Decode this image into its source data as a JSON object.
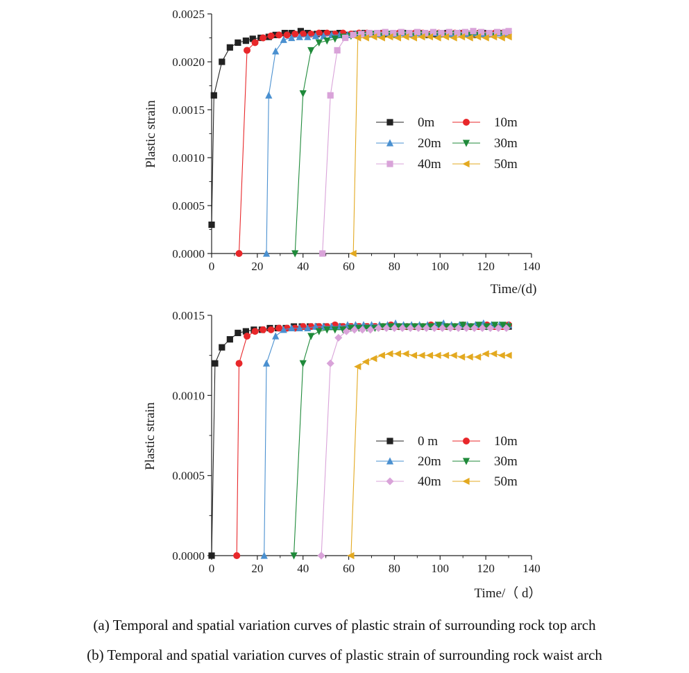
{
  "chart_data": [
    {
      "id": "a",
      "type": "line",
      "xlabel": "Time/(d)",
      "ylabel": "Plastic strain",
      "xlim": [
        0,
        140
      ],
      "ylim": [
        0,
        0.0025
      ],
      "xticks": [
        0,
        20,
        40,
        60,
        80,
        100,
        120,
        140
      ],
      "xtick_labels": [
        "0",
        "20",
        "40",
        "60",
        "80",
        "100",
        "120",
        "140"
      ],
      "yticks": [
        0,
        0.0005,
        0.001,
        0.0015,
        0.002,
        0.0025
      ],
      "ytick_labels": [
        "0.0000",
        "0.0005",
        "0.0010",
        "0.0015",
        "0.0020",
        "0.0025"
      ],
      "legend_placement": "center-right",
      "series": [
        {
          "name": "0m",
          "color": "#222222",
          "marker": "square",
          "x": [
            0,
            1,
            4.5,
            8,
            11.5,
            15,
            18,
            21.5,
            25,
            28,
            32,
            35,
            39,
            42,
            46,
            49,
            53,
            56,
            60,
            63,
            67,
            70,
            74,
            77,
            81,
            84,
            88,
            91,
            95,
            98,
            102,
            105,
            109,
            112,
            116,
            119,
            123,
            126,
            129
          ],
          "y": [
            0.0003,
            0.00165,
            0.002,
            0.00215,
            0.0022,
            0.00222,
            0.00224,
            0.00225,
            0.00226,
            0.00228,
            0.0023,
            0.0023,
            0.00232,
            0.0023,
            0.00229,
            0.0023,
            0.00229,
            0.0023,
            0.00228,
            0.00229,
            0.0023,
            0.00229,
            0.0023,
            0.00229,
            0.00228,
            0.0023,
            0.00229,
            0.0023,
            0.00228,
            0.00229,
            0.0023,
            0.00229,
            0.0023,
            0.00229,
            0.00228,
            0.0023,
            0.00229,
            0.0023,
            0.00229
          ]
        },
        {
          "name": "10m",
          "color": "#e8272a",
          "marker": "circle",
          "x": [
            12,
            15.5,
            19,
            22.5,
            26,
            29.5,
            33,
            36.5,
            40,
            43.5,
            47,
            50.5,
            54,
            57.5,
            61,
            64.5,
            68,
            71.5,
            75,
            78.5,
            82,
            85.5,
            89,
            92.5,
            96,
            99.5,
            103,
            106.5,
            110,
            113.5,
            117,
            120.5,
            124,
            127.5
          ],
          "y": [
            0,
            0.00212,
            0.0022,
            0.00225,
            0.00227,
            0.00228,
            0.00228,
            0.00229,
            0.00229,
            0.00229,
            0.0023,
            0.0023,
            0.00229,
            0.0023,
            0.00229,
            0.0023,
            0.0023,
            0.00229,
            0.0023,
            0.00229,
            0.0023,
            0.00229,
            0.0023,
            0.0023,
            0.00229,
            0.0023,
            0.00229,
            0.0023,
            0.0023,
            0.00229,
            0.0023,
            0.00229,
            0.0023,
            0.0023
          ]
        },
        {
          "name": "20m",
          "color": "#4a90d0",
          "marker": "triangle-up",
          "x": [
            24,
            25,
            28,
            31.5,
            35,
            38.5,
            42,
            45.5,
            49,
            52.5,
            56,
            59.5,
            63,
            66.5,
            70,
            73.5,
            77,
            80.5,
            84,
            87.5,
            91,
            94.5,
            98,
            101.5,
            105,
            108.5,
            112,
            115.5,
            119,
            122.5,
            126,
            129.5
          ],
          "y": [
            0,
            0.00165,
            0.00211,
            0.00223,
            0.00225,
            0.00226,
            0.00226,
            0.00227,
            0.00227,
            0.00228,
            0.00228,
            0.00228,
            0.00229,
            0.00229,
            0.00229,
            0.00229,
            0.0023,
            0.00229,
            0.0023,
            0.00229,
            0.0023,
            0.00229,
            0.0023,
            0.00229,
            0.00229,
            0.0023,
            0.00229,
            0.0023,
            0.00229,
            0.00229,
            0.0023,
            0.00229
          ]
        },
        {
          "name": "30m",
          "color": "#1f8a3a",
          "marker": "triangle-down",
          "x": [
            36.5,
            40,
            43.5,
            47,
            50.5,
            54,
            57.5,
            61,
            64.5,
            68,
            71.5,
            75,
            78.5,
            82,
            85.5,
            89,
            92.5,
            96,
            99.5,
            103,
            106.5,
            110,
            113.5,
            117,
            120.5,
            124,
            127.5,
            130
          ],
          "y": [
            0,
            0.00167,
            0.00212,
            0.0022,
            0.00222,
            0.00224,
            0.00226,
            0.00227,
            0.00228,
            0.00228,
            0.00229,
            0.00228,
            0.00229,
            0.00228,
            0.00229,
            0.00228,
            0.00229,
            0.00228,
            0.00229,
            0.00228,
            0.00229,
            0.00228,
            0.00228,
            0.00229,
            0.00228,
            0.00228,
            0.00229,
            0.00228
          ]
        },
        {
          "name": "40m",
          "color": "#d9a3d9",
          "marker": "square",
          "x": [
            48.5,
            52,
            55,
            58.5,
            62,
            65.5,
            69,
            72.5,
            76,
            79.5,
            83,
            86.5,
            90,
            93.5,
            97,
            100.5,
            104,
            107.5,
            111,
            114.5,
            118,
            121.5,
            125,
            128.5,
            130
          ],
          "y": [
            0,
            0.00165,
            0.00212,
            0.00225,
            0.00228,
            0.00229,
            0.0023,
            0.0023,
            0.00231,
            0.0023,
            0.00231,
            0.0023,
            0.00231,
            0.0023,
            0.00231,
            0.0023,
            0.00231,
            0.0023,
            0.00231,
            0.00232,
            0.00231,
            0.0023,
            0.00231,
            0.00231,
            0.00232
          ]
        },
        {
          "name": "50m",
          "color": "#e3a920",
          "marker": "triangle-left",
          "x": [
            62,
            64,
            67.5,
            71,
            74.5,
            78,
            81.5,
            85,
            88.5,
            92,
            95.5,
            99,
            102.5,
            106,
            109.5,
            113,
            116.5,
            120,
            123.5,
            127,
            130
          ],
          "y": [
            0,
            0.00225,
            0.00225,
            0.00226,
            0.00225,
            0.00226,
            0.00225,
            0.00226,
            0.00225,
            0.00226,
            0.00226,
            0.00225,
            0.00226,
            0.00225,
            0.00226,
            0.00225,
            0.00226,
            0.00225,
            0.00226,
            0.00225,
            0.00226
          ]
        }
      ]
    },
    {
      "id": "b",
      "type": "line",
      "xlabel": "Time/（ d）",
      "ylabel": "Plastic strain",
      "xlim": [
        0,
        140
      ],
      "ylim": [
        0,
        0.0015
      ],
      "xticks": [
        0,
        20,
        40,
        60,
        80,
        100,
        120,
        140
      ],
      "xtick_labels": [
        "0",
        "20",
        "40",
        "60",
        "80",
        "100",
        "120",
        "140"
      ],
      "yticks": [
        0,
        0.0005,
        0.001,
        0.0015
      ],
      "ytick_labels": [
        "0.0000",
        "0.0005",
        "0.0010",
        "0.0015"
      ],
      "legend_placement": "center-right",
      "series": [
        {
          "name": "0  m",
          "color": "#222222",
          "marker": "square",
          "x": [
            0,
            1.5,
            4.5,
            8,
            11.5,
            15,
            18.5,
            22,
            25.5,
            29,
            32.5,
            36,
            39.5,
            43,
            46.5,
            50,
            53.5,
            57,
            60.5,
            64,
            67.5,
            71,
            74.5,
            78,
            81.5,
            85,
            88.5,
            92,
            95.5,
            99,
            102.5,
            106,
            109.5,
            113,
            116.5,
            120,
            123.5,
            127,
            130
          ],
          "y": [
            0,
            0.0012,
            0.0013,
            0.00135,
            0.00139,
            0.0014,
            0.00141,
            0.00141,
            0.00142,
            0.00142,
            0.00142,
            0.00143,
            0.00143,
            0.00143,
            0.00143,
            0.00143,
            0.00143,
            0.00143,
            0.00143,
            0.00143,
            0.00143,
            0.00143,
            0.00143,
            0.00143,
            0.00143,
            0.00143,
            0.00143,
            0.00143,
            0.00143,
            0.00143,
            0.00143,
            0.00143,
            0.00143,
            0.00143,
            0.00143,
            0.00143,
            0.00143,
            0.00143,
            0.00143
          ]
        },
        {
          "name": "10m",
          "color": "#e8272a",
          "marker": "circle",
          "x": [
            11,
            12,
            15.5,
            19,
            22.5,
            26,
            29.5,
            33,
            36.5,
            40,
            43.5,
            47,
            50.5,
            54,
            57.5,
            61,
            64.5,
            68,
            71.5,
            75,
            78.5,
            82,
            85.5,
            89,
            92.5,
            96,
            99.5,
            103,
            106.5,
            110,
            113.5,
            117,
            120.5,
            124,
            127.5,
            130
          ],
          "y": [
            0,
            0.0012,
            0.00137,
            0.0014,
            0.00141,
            0.00141,
            0.00142,
            0.00142,
            0.00142,
            0.00143,
            0.00143,
            0.00143,
            0.00143,
            0.00144,
            0.00143,
            0.00143,
            0.00143,
            0.00143,
            0.00143,
            0.00143,
            0.00144,
            0.00143,
            0.00143,
            0.00143,
            0.00143,
            0.00144,
            0.00143,
            0.00143,
            0.00143,
            0.00144,
            0.00143,
            0.00143,
            0.00144,
            0.00143,
            0.00143,
            0.00144
          ]
        },
        {
          "name": "20m",
          "color": "#4a90d0",
          "marker": "triangle-up",
          "x": [
            23,
            24,
            28,
            31.5,
            35,
            38.5,
            42,
            45.5,
            49,
            52.5,
            56,
            59.5,
            63,
            66.5,
            70,
            73.5,
            77,
            80.5,
            84,
            87.5,
            91,
            94.5,
            98,
            101.5,
            105,
            108.5,
            112,
            115.5,
            119,
            122.5,
            126,
            130
          ],
          "y": [
            0,
            0.0012,
            0.00137,
            0.00141,
            0.00142,
            0.00142,
            0.00142,
            0.00143,
            0.00143,
            0.00143,
            0.00143,
            0.00144,
            0.00144,
            0.00144,
            0.00144,
            0.00144,
            0.00144,
            0.00145,
            0.00144,
            0.00144,
            0.00144,
            0.00144,
            0.00144,
            0.00145,
            0.00144,
            0.00144,
            0.00144,
            0.00144,
            0.00145,
            0.00144,
            0.00144,
            0.00144
          ]
        },
        {
          "name": "30m",
          "color": "#1f8a3a",
          "marker": "triangle-down",
          "x": [
            36,
            40,
            43.5,
            47,
            50.5,
            54,
            57.5,
            61,
            64.5,
            68,
            71.5,
            75,
            78.5,
            82,
            85.5,
            89,
            92.5,
            96,
            99.5,
            103,
            106.5,
            110,
            113.5,
            117,
            120.5,
            124,
            127.5,
            130
          ],
          "y": [
            0,
            0.0012,
            0.00137,
            0.0014,
            0.00141,
            0.00141,
            0.00141,
            0.00142,
            0.00142,
            0.00142,
            0.00142,
            0.00143,
            0.00143,
            0.00143,
            0.00143,
            0.00143,
            0.00143,
            0.00143,
            0.00144,
            0.00143,
            0.00143,
            0.00144,
            0.00143,
            0.00144,
            0.00143,
            0.00144,
            0.00144,
            0.00143
          ]
        },
        {
          "name": "40m",
          "color": "#d9a3d9",
          "marker": "diamond",
          "x": [
            48,
            52,
            55.5,
            59,
            62.5,
            66,
            69.5,
            73,
            76.5,
            80,
            83.5,
            87,
            90.5,
            94,
            97.5,
            101,
            104.5,
            108,
            111.5,
            115,
            118.5,
            122,
            125.5,
            129
          ],
          "y": [
            0,
            0.0012,
            0.00136,
            0.0014,
            0.00141,
            0.00141,
            0.00141,
            0.00142,
            0.00142,
            0.00142,
            0.00142,
            0.00142,
            0.00142,
            0.00142,
            0.00142,
            0.00142,
            0.00142,
            0.00142,
            0.00142,
            0.00142,
            0.00142,
            0.00142,
            0.00142,
            0.00142
          ]
        },
        {
          "name": "50m",
          "color": "#e3a920",
          "marker": "triangle-left",
          "x": [
            61,
            64,
            67.5,
            71,
            74.5,
            78,
            81.5,
            85,
            88.5,
            92,
            95.5,
            99,
            102.5,
            106,
            109.5,
            113,
            116.5,
            120,
            123.5,
            127,
            130
          ],
          "y": [
            0,
            0.00118,
            0.00121,
            0.00123,
            0.00125,
            0.00126,
            0.00126,
            0.00126,
            0.00125,
            0.00125,
            0.00125,
            0.00125,
            0.00125,
            0.00125,
            0.00124,
            0.00124,
            0.00124,
            0.00126,
            0.00126,
            0.00125,
            0.00125
          ]
        }
      ]
    }
  ],
  "captions": {
    "a": "(a) Temporal and spatial variation curves of plastic strain of surrounding rock top arch",
    "b": "(b) Temporal and spatial variation curves of plastic strain of surrounding rock waist arch"
  }
}
